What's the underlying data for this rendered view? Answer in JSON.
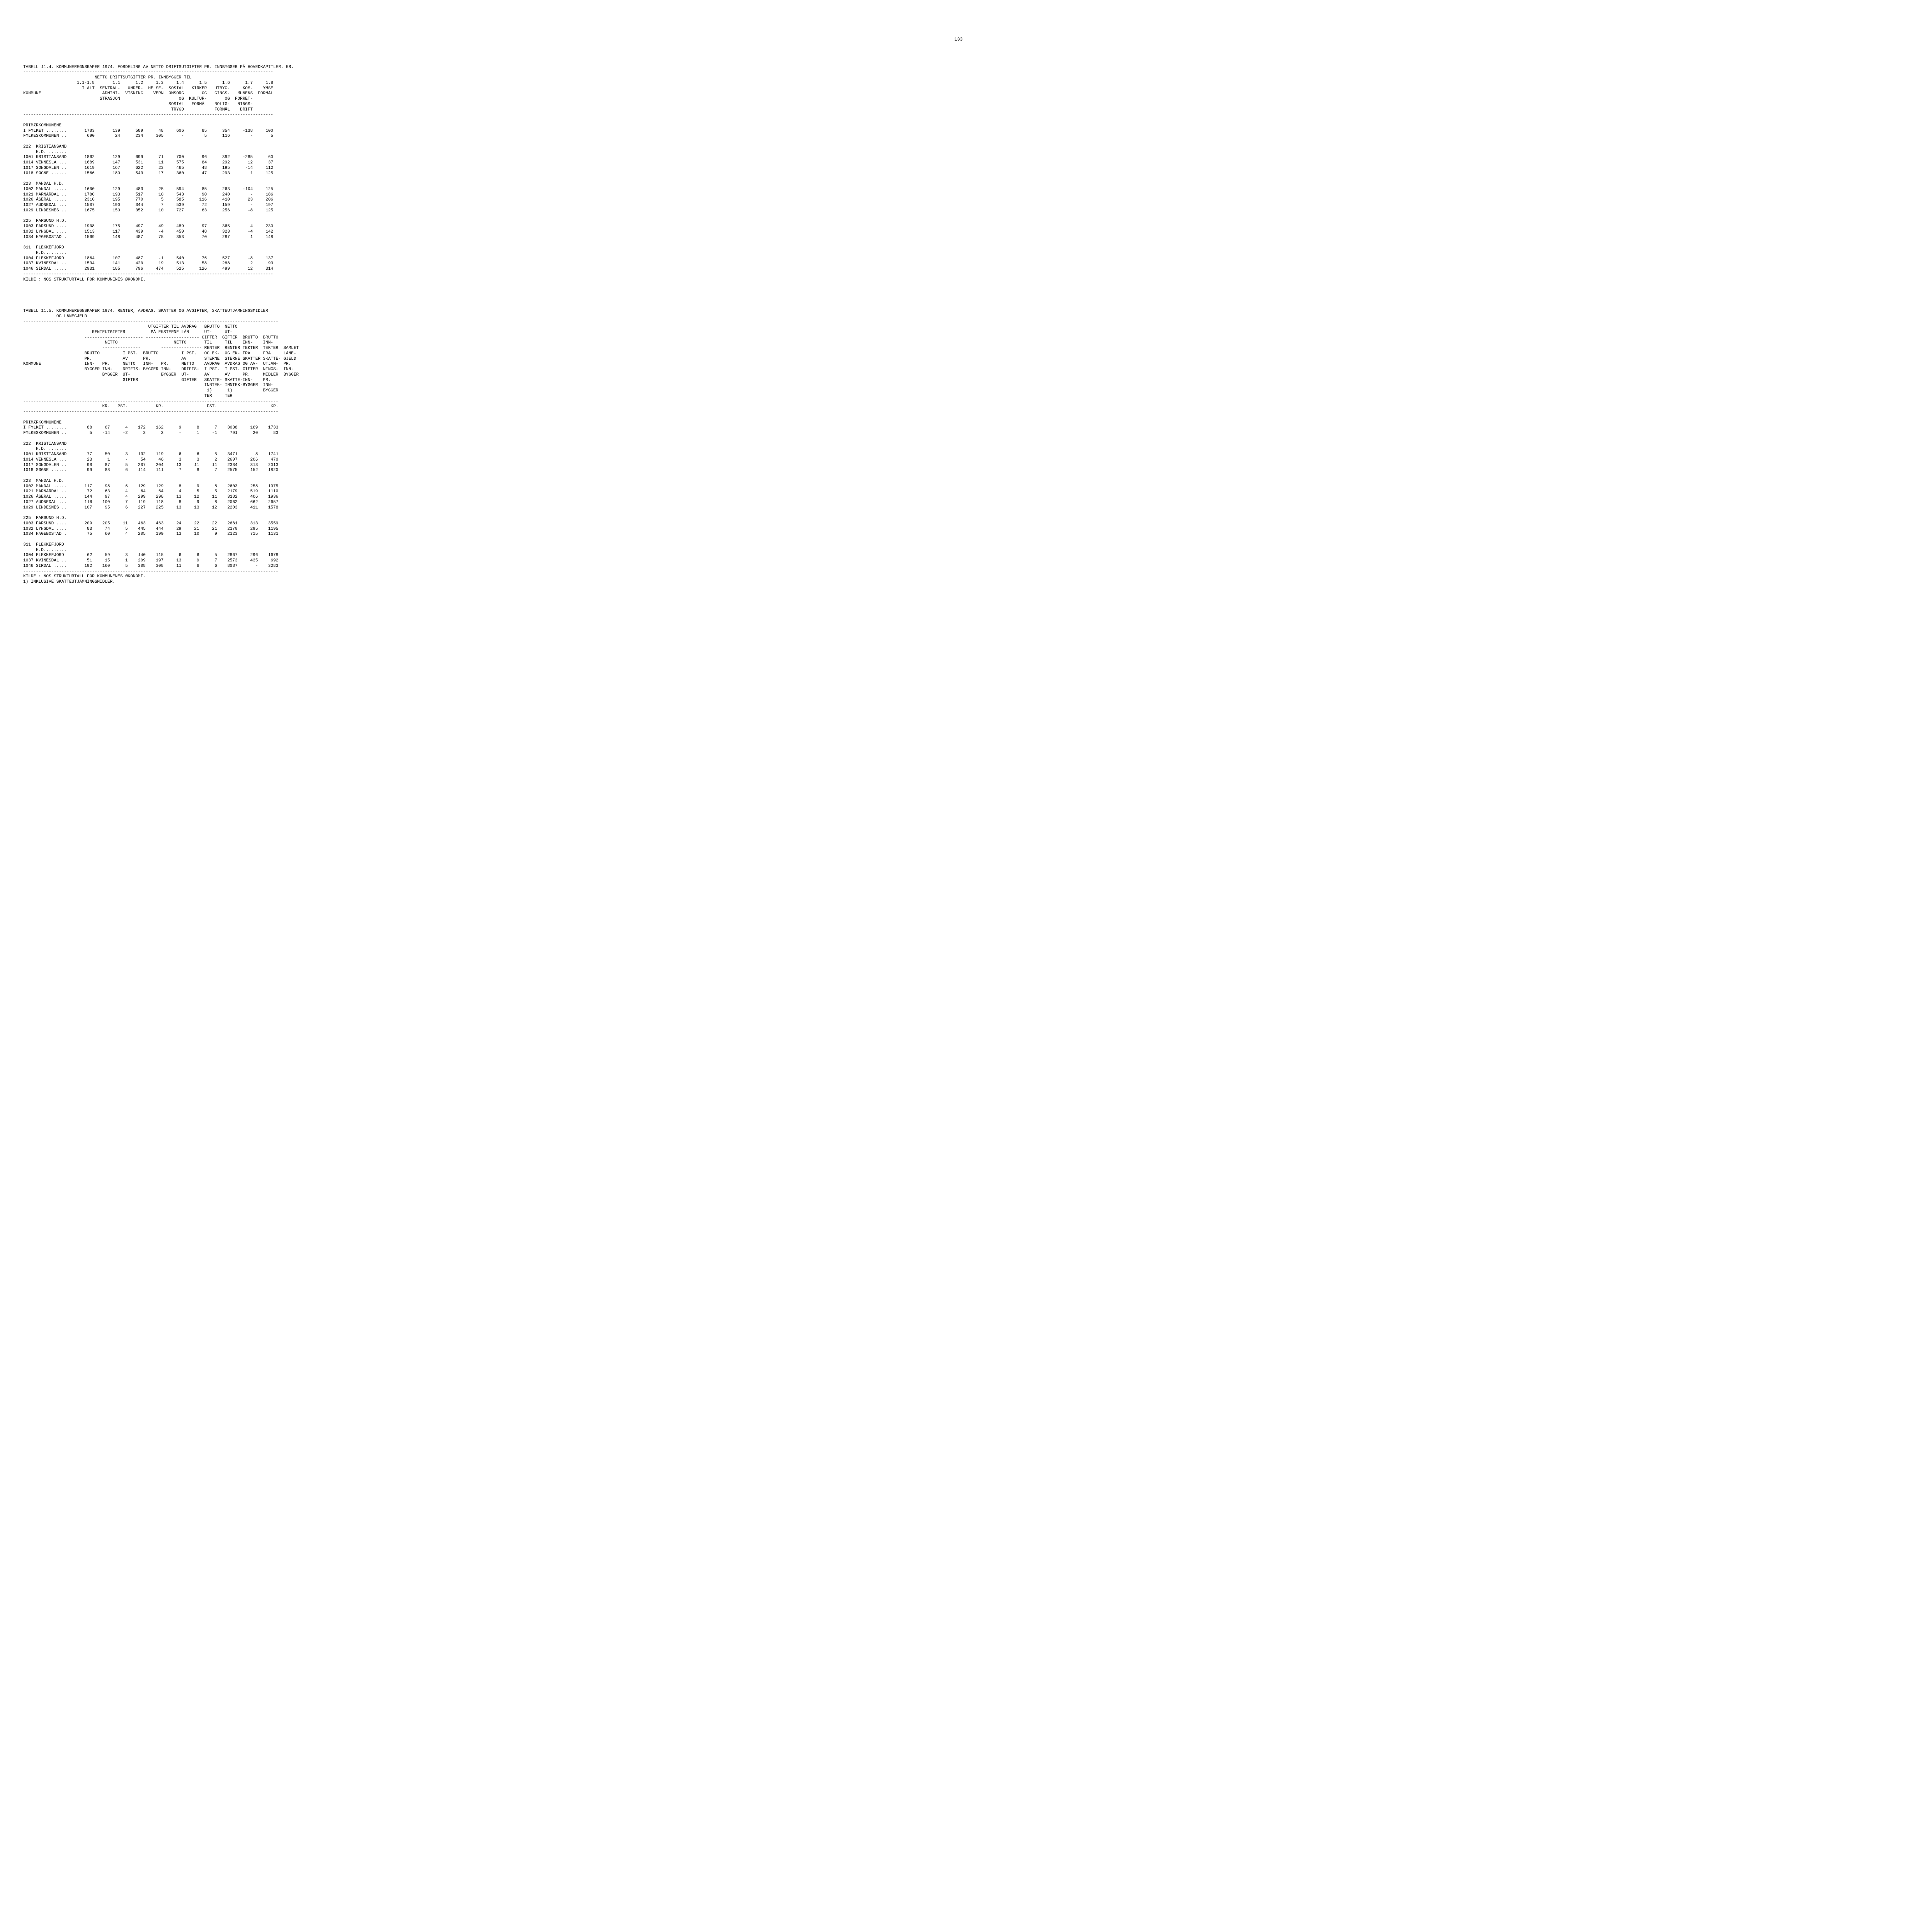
{
  "page_number": "133",
  "table_11_4": {
    "title": "TABELL 11.4. KOMMUNEREGNSKAPER 1974. FORDELING AV NETTO DRIFTSUTGIFTER PR. INNBYGGER PÅ HOVEDKAPITLER. KR.",
    "header_super": "NETTO DRIFTSUTGIFTER PR. INNBYGGER TIL",
    "columns": [
      "1.1-1.8",
      "1.1",
      "1.2",
      "1.3",
      "1.4",
      "1.5",
      "1.6",
      "1.7",
      "1.8"
    ],
    "column_sub": [
      "I ALT",
      "SENTRAL-\nADMINI-\nSTRASJON",
      "UNDER-\nVISNING",
      "HELSE-\nVERN",
      "SOSIAL\nOMSORG\nOG\nSOSIAL\nTRYGD",
      "KIRKER\nOG\nKULTUR-\nFORMÅL",
      "UTBYG-\nGINGS-\nOG\nBOLIG-\nFORMÅL",
      "KOM-\nMUNENS\nFORRET-\nNINGS-\nDRIFT",
      "YMSE\nFORMÅL"
    ],
    "row_label_kommune": "KOMMUNE",
    "groups": [
      {
        "header": "PRIMÆRKOMMUNENE",
        "rows": [
          {
            "label": "I FYLKET ........",
            "v": [
              "1783",
              "139",
              "589",
              "48",
              "606",
              "85",
              "354",
              "-138",
              "100"
            ]
          },
          {
            "label": "FYLKESKOMMUNEN ..",
            "v": [
              "690",
              "24",
              "234",
              "305",
              "-",
              "5",
              "116",
              "-",
              "5"
            ]
          }
        ]
      },
      {
        "header": "222  KRISTIANSAND\n     H.D. .......",
        "rows": [
          {
            "label": "1001 KRISTIANSAND",
            "v": [
              "1862",
              "129",
              "699",
              "71",
              "700",
              "96",
              "392",
              "-285",
              "60"
            ]
          },
          {
            "label": "1014 VENNESLA ...",
            "v": [
              "1689",
              "147",
              "531",
              "11",
              "575",
              "84",
              "292",
              "12",
              "37"
            ]
          },
          {
            "label": "1017 SONGDALEN ..",
            "v": [
              "1619",
              "167",
              "622",
              "23",
              "465",
              "48",
              "195",
              "-14",
              "112"
            ]
          },
          {
            "label": "1018 SØGNE ......",
            "v": [
              "1566",
              "180",
              "543",
              "17",
              "360",
              "47",
              "293",
              "1",
              "125"
            ]
          }
        ]
      },
      {
        "header": "223  MANDAL H.D.",
        "rows": [
          {
            "label": "1002 MANDAL .....",
            "v": [
              "1600",
              "129",
              "483",
              "25",
              "594",
              "85",
              "263",
              "-104",
              "125"
            ]
          },
          {
            "label": "1021 MARNARDAL ..",
            "v": [
              "1780",
              "193",
              "517",
              "10",
              "543",
              "90",
              "240",
              "-",
              "186"
            ]
          },
          {
            "label": "1026 ÅSERAL .....",
            "v": [
              "2310",
              "195",
              "770",
              "5",
              "585",
              "116",
              "410",
              "23",
              "206"
            ]
          },
          {
            "label": "1027 AUDNEDAL ...",
            "v": [
              "1507",
              "190",
              "344",
              "7",
              "539",
              "72",
              "159",
              "-",
              "197"
            ]
          },
          {
            "label": "1029 LINDESNES ..",
            "v": [
              "1675",
              "150",
              "352",
              "10",
              "727",
              "63",
              "256",
              "-8",
              "125"
            ]
          }
        ]
      },
      {
        "header": "225  FARSUND H.D.",
        "rows": [
          {
            "label": "1003 FARSUND ....",
            "v": [
              "1908",
              "175",
              "497",
              "49",
              "489",
              "97",
              "365",
              "4",
              "230"
            ]
          },
          {
            "label": "1032 LYNGDAL ....",
            "v": [
              "1513",
              "117",
              "439",
              "-4",
              "450",
              "48",
              "323",
              "-4",
              "142"
            ]
          },
          {
            "label": "1034 HÆGEBOSTAD .",
            "v": [
              "1569",
              "148",
              "487",
              "75",
              "353",
              "70",
              "287",
              "1",
              "148"
            ]
          }
        ]
      },
      {
        "header": "311  FLEKKEFJORD\n     H.D.........",
        "rows": [
          {
            "label": "1004 FLEKKEFJORD ",
            "v": [
              "1864",
              "107",
              "487",
              "-1",
              "540",
              "76",
              "527",
              "-8",
              "137"
            ]
          },
          {
            "label": "1037 KVINESDAL ..",
            "v": [
              "1534",
              "141",
              "420",
              "19",
              "513",
              "58",
              "288",
              "2",
              "93"
            ]
          },
          {
            "label": "1046 SIRDAL .....",
            "v": [
              "2931",
              "185",
              "796",
              "474",
              "525",
              "126",
              "499",
              "12",
              "314"
            ]
          }
        ]
      }
    ],
    "footer": "KILDE : NOS STRUKTURTALL FOR KOMMUNENES ØKONOMI."
  },
  "table_11_5": {
    "title": "TABELL 11.5. KOMMUNEREGNSKAPER 1974. RENTER, AVDRAG, SKATTER OG AVGIFTER, SKATTEUTJAMNINGSMIDLER\n             OG LÅNEGJELD",
    "unit_row": {
      "kr1": "KR.",
      "pst1": "PST.",
      "kr2": "KR.",
      "pst2": "PST.",
      "kr3": "KR."
    },
    "groups": [
      {
        "header": "PRIMÆRKOMMUNENE",
        "rows": [
          {
            "label": "I FYLKET ........",
            "v": [
              "88",
              "67",
              "4",
              "172",
              "162",
              "9",
              "8",
              "7",
              "3038",
              "169",
              "1733"
            ]
          },
          {
            "label": "FYLKESKOMMUNEN ..",
            "v": [
              "5",
              "-14",
              "-2",
              "3",
              "2",
              "-",
              "1",
              "-1",
              "791",
              "20",
              "83"
            ]
          }
        ]
      },
      {
        "header": "222  KRISTIANSAND\n     H.D. .......",
        "rows": [
          {
            "label": "1001 KRISTIANSAND",
            "v": [
              "77",
              "50",
              "3",
              "132",
              "119",
              "6",
              "6",
              "5",
              "3471",
              "8",
              "1741"
            ]
          },
          {
            "label": "1014 VENNESLA ...",
            "v": [
              "23",
              "1",
              "-",
              "54",
              "46",
              "3",
              "3",
              "2",
              "2607",
              "206",
              "470"
            ]
          },
          {
            "label": "1017 SONGDALEN ..",
            "v": [
              "98",
              "87",
              "5",
              "207",
              "204",
              "13",
              "11",
              "11",
              "2384",
              "313",
              "2013"
            ]
          },
          {
            "label": "1018 SØGNE ......",
            "v": [
              "99",
              "88",
              "6",
              "114",
              "111",
              "7",
              "8",
              "7",
              "2575",
              "152",
              "1820"
            ]
          }
        ]
      },
      {
        "header": "223  MANDAL H.D.",
        "rows": [
          {
            "label": "1002 MANDAL .....",
            "v": [
              "117",
              "98",
              "6",
              "129",
              "129",
              "8",
              "9",
              "8",
              "2603",
              "258",
              "1975"
            ]
          },
          {
            "label": "1021 MARNARDAL ..",
            "v": [
              "72",
              "63",
              "4",
              "64",
              "64",
              "4",
              "5",
              "5",
              "2179",
              "519",
              "1110"
            ]
          },
          {
            "label": "1026 ÅSERAL .....",
            "v": [
              "144",
              "97",
              "4",
              "299",
              "298",
              "13",
              "12",
              "11",
              "3182",
              "406",
              "1936"
            ]
          },
          {
            "label": "1027 AUDNEDAL ...",
            "v": [
              "116",
              "100",
              "7",
              "119",
              "118",
              "8",
              "9",
              "8",
              "2062",
              "662",
              "2657"
            ]
          },
          {
            "label": "1029 LINDESNES ..",
            "v": [
              "107",
              "95",
              "6",
              "227",
              "225",
              "13",
              "13",
              "12",
              "2203",
              "411",
              "1578"
            ]
          }
        ]
      },
      {
        "header": "225  FARSUND H.D.",
        "rows": [
          {
            "label": "1003 FARSUND ....",
            "v": [
              "209",
              "205",
              "11",
              "463",
              "463",
              "24",
              "22",
              "22",
              "2681",
              "313",
              "3559"
            ]
          },
          {
            "label": "1032 LYNGDAL ....",
            "v": [
              "83",
              "74",
              "5",
              "445",
              "444",
              "29",
              "21",
              "21",
              "2170",
              "295",
              "1195"
            ]
          },
          {
            "label": "1034 HÆGEBOSTAD .",
            "v": [
              "75",
              "60",
              "4",
              "205",
              "199",
              "13",
              "10",
              "9",
              "2123",
              "715",
              "1131"
            ]
          }
        ]
      },
      {
        "header": "311  FLEKKEFJORD\n     H.D.........",
        "rows": [
          {
            "label": "1004 FLEKKEFJORD ",
            "v": [
              "62",
              "59",
              "3",
              "140",
              "115",
              "6",
              "6",
              "5",
              "2867",
              "296",
              "1678"
            ]
          },
          {
            "label": "1037 KVINESDAL ..",
            "v": [
              "51",
              "15",
              "1",
              "209",
              "197",
              "13",
              "9",
              "7",
              "2573",
              "435",
              "692"
            ]
          },
          {
            "label": "1046 SIRDAL .....",
            "v": [
              "192",
              "160",
              "5",
              "308",
              "308",
              "11",
              "6",
              "6",
              "8087",
              "-",
              "3283"
            ]
          }
        ]
      }
    ],
    "footer": "KILDE : NOS STRUKTURTALL FOR KOMMUNENES ØKONOMI.\n1) INKLUSIVE SKATTEUTJAMNINGSMIDLER."
  }
}
